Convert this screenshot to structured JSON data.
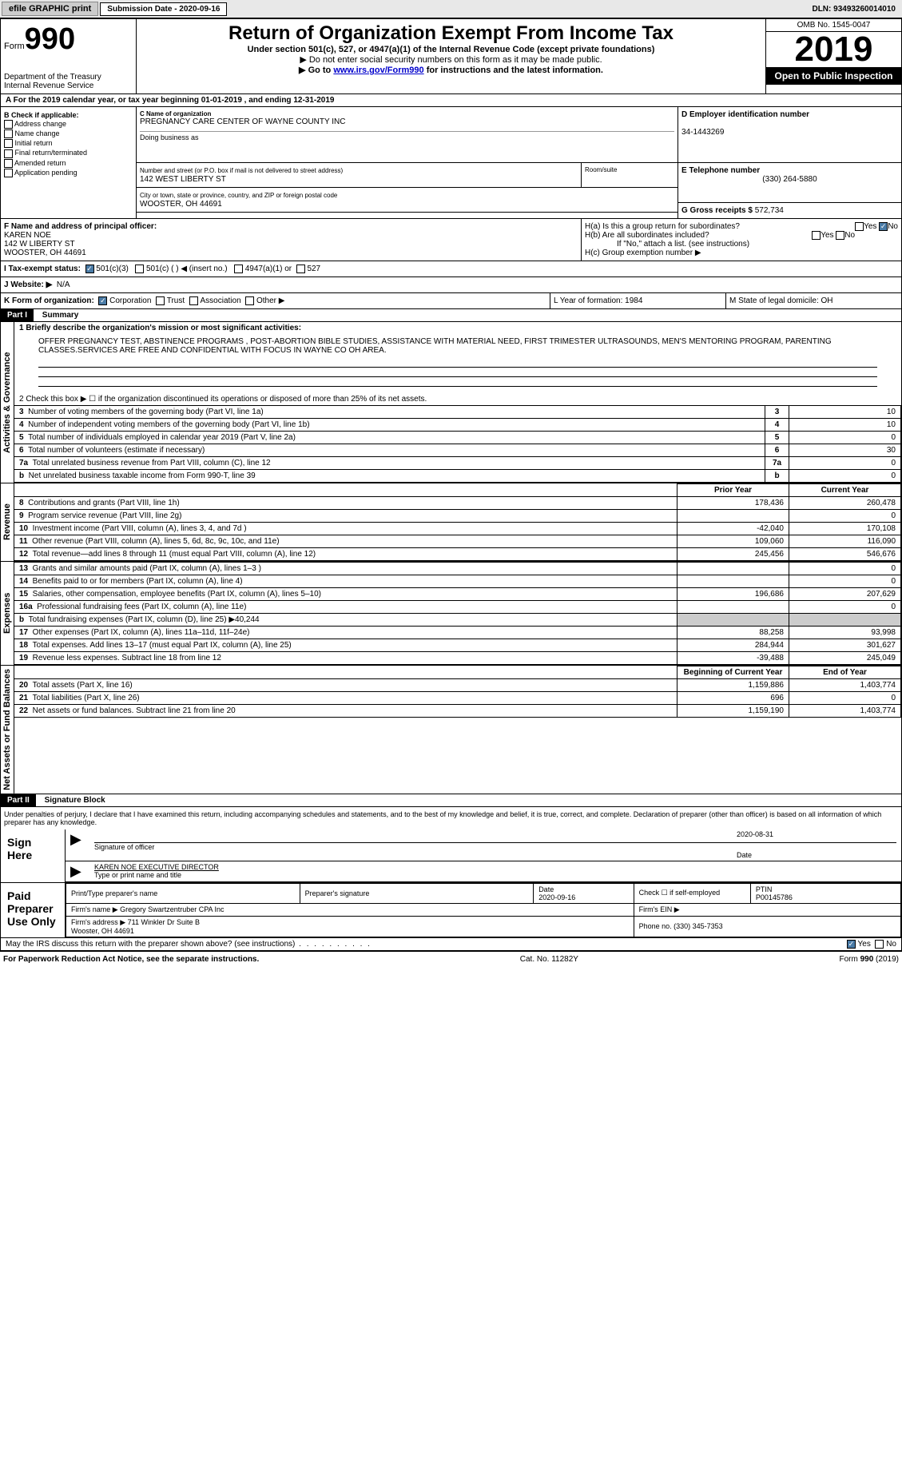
{
  "topbar": {
    "efile": "efile GRAPHIC print",
    "sub_label": "Submission Date - 2020-09-16",
    "dln": "DLN: 93493260014010"
  },
  "header": {
    "form_word": "Form",
    "form_num": "990",
    "dept": "Department of the Treasury\nInternal Revenue Service",
    "title": "Return of Organization Exempt From Income Tax",
    "subtitle": "Under section 501(c), 527, or 4947(a)(1) of the Internal Revenue Code (except private foundations)",
    "note1": "▶ Do not enter social security numbers on this form as it may be made public.",
    "note2_pre": "▶ Go to ",
    "note2_link": "www.irs.gov/Form990",
    "note2_post": " for instructions and the latest information.",
    "omb": "OMB No. 1545-0047",
    "year": "2019",
    "inspect": "Open to Public Inspection"
  },
  "row_a": "A For the 2019 calendar year, or tax year beginning 01-01-2019   , and ending 12-31-2019",
  "box_b": {
    "title": "B Check if applicable:",
    "items": [
      "Address change",
      "Name change",
      "Initial return",
      "Final return/terminated",
      "Amended return",
      "Application pending"
    ]
  },
  "org": {
    "c_label": "C Name of organization",
    "name": "PREGNANCY CARE CENTER OF WAYNE COUNTY INC",
    "dba_label": "Doing business as",
    "street_label": "Number and street (or P.O. box if mail is not delivered to street address)",
    "street": "142 WEST LIBERTY ST",
    "suite_label": "Room/suite",
    "city_label": "City or town, state or province, country, and ZIP or foreign postal code",
    "city": "WOOSTER, OH  44691"
  },
  "right": {
    "d_label": "D Employer identification number",
    "ein": "34-1443269",
    "e_label": "E Telephone number",
    "tel": "(330) 264-5880",
    "g_label": "G Gross receipts $ ",
    "gross": "572,734"
  },
  "f": {
    "label": "F  Name and address of principal officer:",
    "name": "KAREN NOE",
    "street": "142 W LIBERTY ST",
    "city": "WOOSTER, OH  44691"
  },
  "h": {
    "a": "H(a)  Is this a group return for subordinates?",
    "b": "H(b)  Are all subordinates included?",
    "note": "If \"No,\" attach a list. (see instructions)",
    "c": "H(c)  Group exemption number ▶",
    "yes": "Yes",
    "no": "No"
  },
  "i": {
    "label": "I  Tax-exempt status:",
    "opts": [
      "501(c)(3)",
      "501(c) (  ) ◀ (insert no.)",
      "4947(a)(1) or",
      "527"
    ]
  },
  "j": {
    "label": "J  Website: ▶",
    "val": "N/A"
  },
  "k": {
    "label": "K Form of organization:",
    "opts": [
      "Corporation",
      "Trust",
      "Association",
      "Other ▶"
    ],
    "l": "L Year of formation: 1984",
    "m": "M State of legal domicile: OH"
  },
  "part1": {
    "hdr": "Part I",
    "title": "Summary",
    "vtab1": "Activities & Governance",
    "vtab2": "Revenue",
    "vtab3": "Expenses",
    "vtab4": "Net Assets or Fund Balances",
    "line1_label": "1  Briefly describe the organization's mission or most significant activities:",
    "mission": "OFFER PREGNANCY TEST, ABSTINENCE PROGRAMS , POST-ABORTION BIBLE STUDIES, ASSISTANCE WITH MATERIAL NEED, FIRST TRIMESTER ULTRASOUNDS, MEN'S MENTORING PROGRAM, PARENTING CLASSES.SERVICES ARE FREE AND CONFIDENTIAL WITH FOCUS IN WAYNE CO OH AREA.",
    "line2": "2   Check this box ▶ ☐  if the organization discontinued its operations or disposed of more than 25% of its net assets.",
    "lines_gov": [
      {
        "n": "3",
        "t": "Number of voting members of the governing body (Part VI, line 1a)",
        "v": "10"
      },
      {
        "n": "4",
        "t": "Number of independent voting members of the governing body (Part VI, line 1b)",
        "v": "10"
      },
      {
        "n": "5",
        "t": "Total number of individuals employed in calendar year 2019 (Part V, line 2a)",
        "v": "0"
      },
      {
        "n": "6",
        "t": "Total number of volunteers (estimate if necessary)",
        "v": "30"
      },
      {
        "n": "7a",
        "t": "Total unrelated business revenue from Part VIII, column (C), line 12",
        "v": "0"
      },
      {
        "n": "b",
        "t": "Net unrelated business taxable income from Form 990-T, line 39",
        "v": "0"
      }
    ],
    "col_prior": "Prior Year",
    "col_curr": "Current Year",
    "rev": [
      {
        "n": "8",
        "t": "Contributions and grants (Part VIII, line 1h)",
        "p": "178,436",
        "c": "260,478"
      },
      {
        "n": "9",
        "t": "Program service revenue (Part VIII, line 2g)",
        "p": "",
        "c": "0"
      },
      {
        "n": "10",
        "t": "Investment income (Part VIII, column (A), lines 3, 4, and 7d )",
        "p": "-42,040",
        "c": "170,108"
      },
      {
        "n": "11",
        "t": "Other revenue (Part VIII, column (A), lines 5, 6d, 8c, 9c, 10c, and 11e)",
        "p": "109,060",
        "c": "116,090"
      },
      {
        "n": "12",
        "t": "Total revenue—add lines 8 through 11 (must equal Part VIII, column (A), line 12)",
        "p": "245,456",
        "c": "546,676"
      }
    ],
    "exp": [
      {
        "n": "13",
        "t": "Grants and similar amounts paid (Part IX, column (A), lines 1–3 )",
        "p": "",
        "c": "0"
      },
      {
        "n": "14",
        "t": "Benefits paid to or for members (Part IX, column (A), line 4)",
        "p": "",
        "c": "0"
      },
      {
        "n": "15",
        "t": "Salaries, other compensation, employee benefits (Part IX, column (A), lines 5–10)",
        "p": "196,686",
        "c": "207,629"
      },
      {
        "n": "16a",
        "t": "Professional fundraising fees (Part IX, column (A), line 11e)",
        "p": "",
        "c": "0"
      },
      {
        "n": "b",
        "t": "Total fundraising expenses (Part IX, column (D), line 25) ▶40,244",
        "p": "shade",
        "c": "shade"
      },
      {
        "n": "17",
        "t": "Other expenses (Part IX, column (A), lines 11a–11d, 11f–24e)",
        "p": "88,258",
        "c": "93,998"
      },
      {
        "n": "18",
        "t": "Total expenses. Add lines 13–17 (must equal Part IX, column (A), line 25)",
        "p": "284,944",
        "c": "301,627"
      },
      {
        "n": "19",
        "t": "Revenue less expenses. Subtract line 18 from line 12",
        "p": "-39,488",
        "c": "245,049"
      }
    ],
    "col_beg": "Beginning of Current Year",
    "col_end": "End of Year",
    "net": [
      {
        "n": "20",
        "t": "Total assets (Part X, line 16)",
        "p": "1,159,886",
        "c": "1,403,774"
      },
      {
        "n": "21",
        "t": "Total liabilities (Part X, line 26)",
        "p": "696",
        "c": "0"
      },
      {
        "n": "22",
        "t": "Net assets or fund balances. Subtract line 21 from line 20",
        "p": "1,159,190",
        "c": "1,403,774"
      }
    ]
  },
  "part2": {
    "hdr": "Part II",
    "title": "Signature Block",
    "decl": "Under penalties of perjury, I declare that I have examined this return, including accompanying schedules and statements, and to the best of my knowledge and belief, it is true, correct, and complete. Declaration of preparer (other than officer) is based on all information of which preparer has any knowledge.",
    "sign_here": "Sign Here",
    "sig_label": "Signature of officer",
    "date_label": "Date",
    "sig_date": "2020-08-31",
    "name_title": "KAREN NOE  EXECUTIVE DIRECTOR",
    "name_label": "Type or print name and title",
    "paid": "Paid Preparer Use Only",
    "prep_name_label": "Print/Type preparer's name",
    "prep_sig_label": "Preparer's signature",
    "prep_date_label": "Date",
    "prep_date": "2020-09-16",
    "check_label": "Check ☐ if self-employed",
    "ptin_label": "PTIN",
    "ptin": "P00145786",
    "firm_name_label": "Firm's name    ▶",
    "firm_name": "Gregory Swartzentruber CPA Inc",
    "firm_ein_label": "Firm's EIN ▶",
    "firm_addr_label": "Firm's address ▶",
    "firm_addr": "711 Winkler Dr Suite B\nWooster, OH  44691",
    "firm_phone_label": "Phone no.",
    "firm_phone": "(330) 345-7353",
    "discuss": "May the IRS discuss this return with the preparer shown above? (see instructions)"
  },
  "footer": {
    "left": "For Paperwork Reduction Act Notice, see the separate instructions.",
    "mid": "Cat. No. 11282Y",
    "right": "Form 990 (2019)"
  }
}
